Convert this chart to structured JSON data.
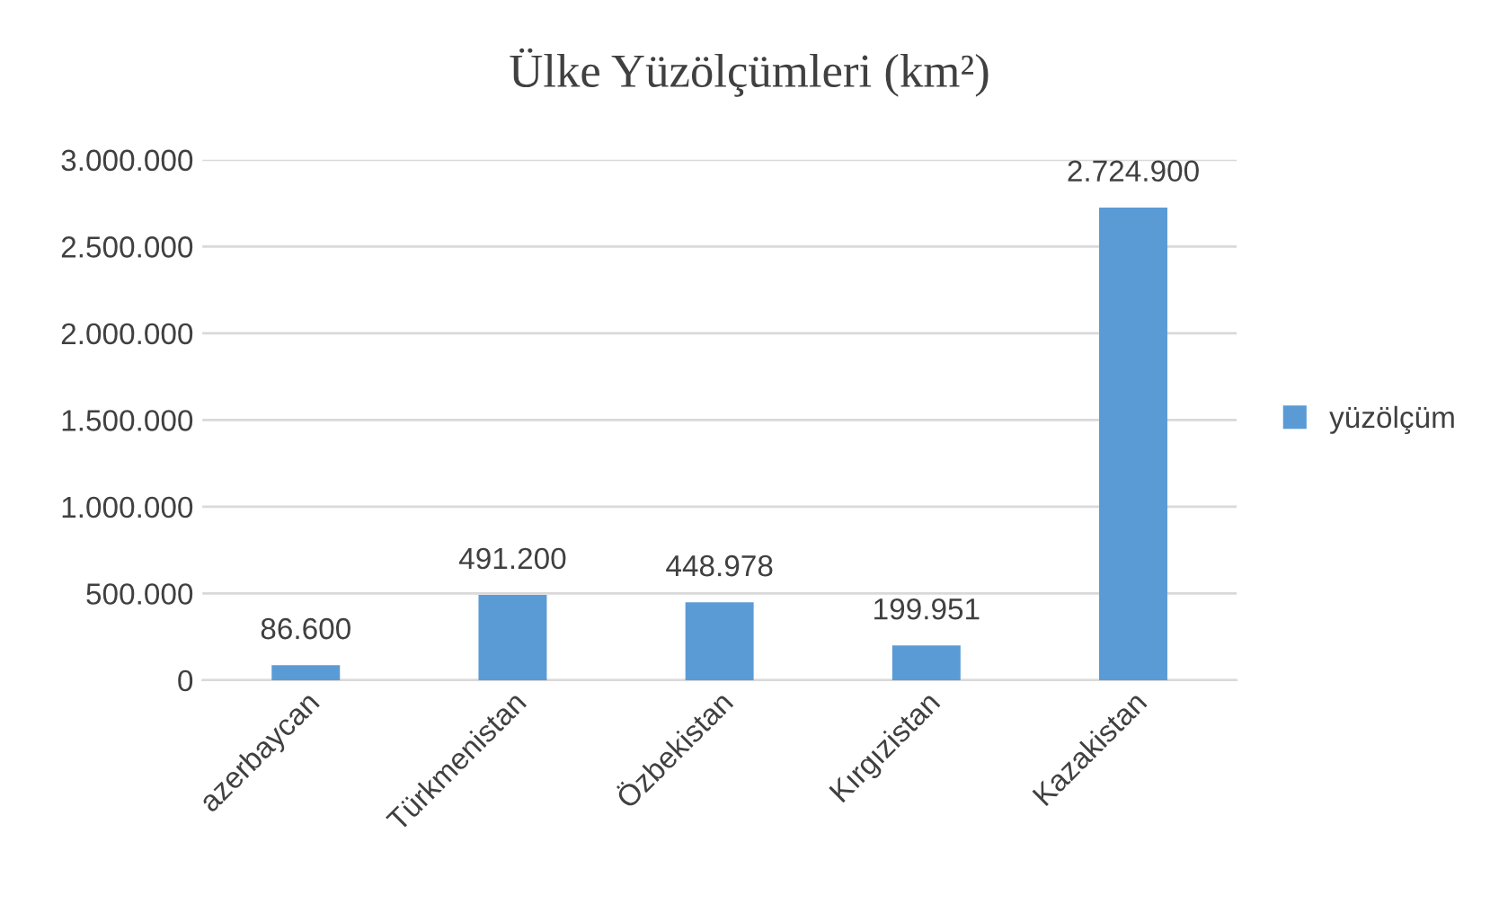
{
  "chart_data": {
    "type": "bar",
    "title": "Ülke Yüzölçümleri (km²)",
    "categories": [
      "azerbaycan",
      "Türkmenistan",
      "Özbekistan",
      "Kırgızistan",
      "Kazakistan"
    ],
    "series": [
      {
        "name": "yüzölçüm",
        "color": "#5b9bd5",
        "values": [
          86600,
          491200,
          448978,
          199951,
          2724900
        ],
        "value_labels": [
          "86.600",
          "491.200",
          "448.978",
          "199.951",
          "2.724.900"
        ]
      }
    ],
    "ylim": [
      0,
      3000000
    ],
    "yticks": [
      {
        "value": 0,
        "label": "0"
      },
      {
        "value": 500000,
        "label": "500.000"
      },
      {
        "value": 1000000,
        "label": "1.000.000"
      },
      {
        "value": 1500000,
        "label": "1.500.000"
      },
      {
        "value": 2000000,
        "label": "2.000.000"
      },
      {
        "value": 2500000,
        "label": "2.500.000"
      },
      {
        "value": 3000000,
        "label": "3.000.000"
      }
    ],
    "grid": "y",
    "legend": "right"
  }
}
